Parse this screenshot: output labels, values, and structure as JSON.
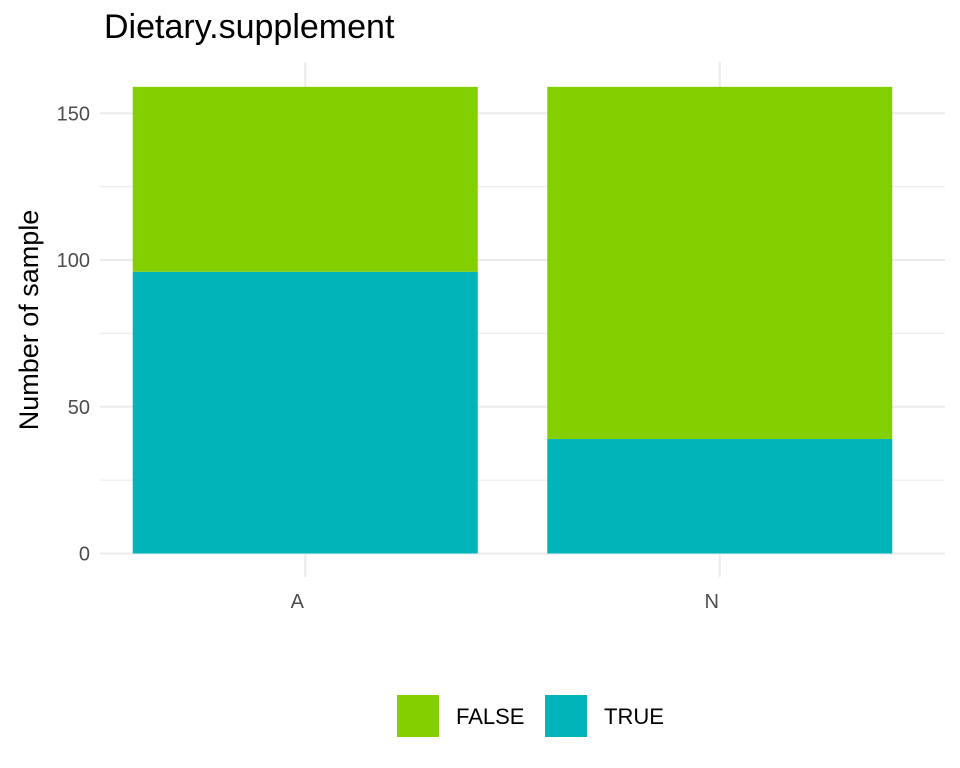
{
  "chart_data": {
    "type": "bar",
    "stacked": true,
    "title": "Dietary.supplement",
    "xlabel": "",
    "ylabel": "Number of sample",
    "categories": [
      "A",
      "N"
    ],
    "series": [
      {
        "name": "FALSE",
        "color": "#84CF00",
        "values": [
          63,
          120
        ]
      },
      {
        "name": "TRUE",
        "color": "#00B4BA",
        "values": [
          96,
          39
        ]
      }
    ],
    "ylim": [
      0,
      160
    ],
    "yticks": [
      0,
      50,
      100,
      150
    ],
    "grid": true,
    "legend_position": "bottom"
  }
}
